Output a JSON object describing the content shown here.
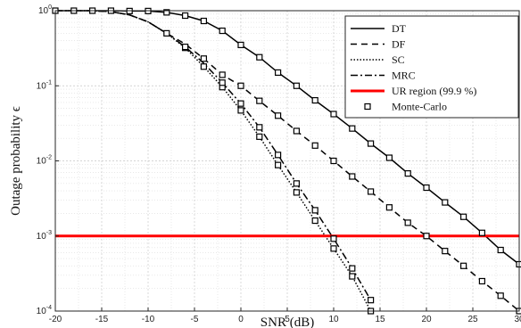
{
  "chart_data": {
    "type": "line",
    "xlabel": "SNR (dB)",
    "ylabel": "Outage probability ϵ",
    "xlim": [
      -20,
      30
    ],
    "ylim": [
      0.0001,
      1
    ],
    "yscale": "log",
    "grid": true,
    "legend_position": "top-right",
    "x_ticks": [
      "-20",
      "-15",
      "-10",
      "-5",
      "0",
      "5",
      "10",
      "15",
      "20",
      "25",
      "30"
    ],
    "y_ticks": [
      {
        "base": "10",
        "exp": "0"
      },
      {
        "base": "10",
        "exp": "-1"
      },
      {
        "base": "10",
        "exp": "-2"
      },
      {
        "base": "10",
        "exp": "-3"
      },
      {
        "base": "10",
        "exp": "-4"
      }
    ],
    "series": [
      {
        "name": "DT",
        "style": "solid",
        "color": "#000000",
        "x": [
          -20,
          -18,
          -16,
          -14,
          -12,
          -10,
          -8,
          -6,
          -4,
          -2,
          0,
          2,
          4,
          6,
          8,
          10,
          12,
          14,
          16,
          18,
          20,
          22,
          24,
          26,
          28,
          30
        ],
        "y": [
          1.0,
          1.0,
          1.0,
          1.0,
          0.99,
          0.99,
          0.95,
          0.86,
          0.73,
          0.54,
          0.35,
          0.24,
          0.15,
          0.1,
          0.064,
          0.042,
          0.027,
          0.017,
          0.011,
          0.0068,
          0.0044,
          0.0028,
          0.0018,
          0.0011,
          0.00065,
          0.00042
        ]
      },
      {
        "name": "DF",
        "style": "dashed",
        "color": "#000000",
        "x": [
          -20,
          -18,
          -16,
          -14,
          -12,
          -10,
          -8,
          -6,
          -4,
          -2,
          0,
          2,
          4,
          6,
          8,
          10,
          12,
          14,
          16,
          18,
          20,
          22,
          24,
          26,
          28,
          30
        ],
        "y": [
          1.0,
          1.0,
          1.0,
          0.97,
          0.88,
          0.71,
          0.5,
          0.36,
          0.23,
          0.14,
          0.1,
          0.063,
          0.04,
          0.025,
          0.016,
          0.01,
          0.0062,
          0.0039,
          0.0024,
          0.0015,
          0.001,
          0.00063,
          0.0004,
          0.00025,
          0.00016,
          0.0001
        ]
      },
      {
        "name": "SC",
        "style": "dotted",
        "color": "#000000",
        "x": [
          -20,
          -18,
          -16,
          -14,
          -12,
          -10,
          -8,
          -6,
          -4,
          -2,
          0,
          2,
          4,
          6,
          8,
          10,
          12,
          14
        ],
        "y": [
          1.0,
          1.0,
          1.0,
          0.97,
          0.88,
          0.71,
          0.5,
          0.32,
          0.18,
          0.096,
          0.047,
          0.021,
          0.0088,
          0.0038,
          0.0016,
          0.00068,
          0.00029,
          0.0001
        ]
      },
      {
        "name": "MRC",
        "style": "dashdot",
        "color": "#000000",
        "x": [
          -20,
          -18,
          -16,
          -14,
          -12,
          -10,
          -8,
          -6,
          -4,
          -2,
          0,
          2,
          4,
          6,
          8,
          10,
          12,
          14
        ],
        "y": [
          1.0,
          1.0,
          1.0,
          0.97,
          0.88,
          0.71,
          0.5,
          0.33,
          0.2,
          0.11,
          0.058,
          0.028,
          0.012,
          0.005,
          0.0022,
          0.00092,
          0.00037,
          0.00014
        ]
      },
      {
        "name": "UR region (99.9 %)",
        "style": "solid",
        "color": "#ff0000",
        "x": [
          -20,
          30
        ],
        "y": [
          0.001,
          0.001
        ]
      }
    ],
    "markers": {
      "name": "Monte-Carlo",
      "symbol": "square",
      "points": [
        {
          "x": -20,
          "y": 1.0
        },
        {
          "x": -18,
          "y": 1.0
        },
        {
          "x": -16,
          "y": 1.0
        },
        {
          "x": -14,
          "y": 1.0
        },
        {
          "x": -12,
          "y": 0.99
        },
        {
          "x": -10,
          "y": 0.99
        },
        {
          "x": -8,
          "y": 0.95
        },
        {
          "x": -6,
          "y": 0.86
        },
        {
          "x": -4,
          "y": 0.73
        },
        {
          "x": -2,
          "y": 0.54
        },
        {
          "x": 0,
          "y": 0.35
        },
        {
          "x": 2,
          "y": 0.24
        },
        {
          "x": 4,
          "y": 0.15
        },
        {
          "x": 6,
          "y": 0.1
        },
        {
          "x": 8,
          "y": 0.064
        },
        {
          "x": 10,
          "y": 0.042
        },
        {
          "x": 12,
          "y": 0.027
        },
        {
          "x": 14,
          "y": 0.017
        },
        {
          "x": 16,
          "y": 0.011
        },
        {
          "x": 18,
          "y": 0.0068
        },
        {
          "x": 20,
          "y": 0.0044
        },
        {
          "x": 22,
          "y": 0.0028
        },
        {
          "x": 24,
          "y": 0.0018
        },
        {
          "x": 26,
          "y": 0.0011
        },
        {
          "x": 28,
          "y": 0.00065
        },
        {
          "x": 30,
          "y": 0.00042
        },
        {
          "x": -4,
          "y": 0.23
        },
        {
          "x": -2,
          "y": 0.14
        },
        {
          "x": 0,
          "y": 0.1
        },
        {
          "x": 2,
          "y": 0.063
        },
        {
          "x": 4,
          "y": 0.04
        },
        {
          "x": 6,
          "y": 0.025
        },
        {
          "x": 8,
          "y": 0.016
        },
        {
          "x": 10,
          "y": 0.01
        },
        {
          "x": 12,
          "y": 0.0062
        },
        {
          "x": 14,
          "y": 0.0039
        },
        {
          "x": 16,
          "y": 0.0024
        },
        {
          "x": 18,
          "y": 0.0015
        },
        {
          "x": 20,
          "y": 0.001
        },
        {
          "x": 22,
          "y": 0.00063
        },
        {
          "x": 24,
          "y": 0.0004
        },
        {
          "x": 26,
          "y": 0.00025
        },
        {
          "x": 28,
          "y": 0.00016
        },
        {
          "x": 30,
          "y": 0.0001
        },
        {
          "x": -8,
          "y": 0.5
        },
        {
          "x": -6,
          "y": 0.32
        },
        {
          "x": -4,
          "y": 0.18
        },
        {
          "x": -2,
          "y": 0.096
        },
        {
          "x": 0,
          "y": 0.047
        },
        {
          "x": 2,
          "y": 0.021
        },
        {
          "x": 4,
          "y": 0.0088
        },
        {
          "x": 6,
          "y": 0.0038
        },
        {
          "x": 8,
          "y": 0.0016
        },
        {
          "x": 10,
          "y": 0.00068
        },
        {
          "x": 12,
          "y": 0.00029
        },
        {
          "x": 14,
          "y": 0.0001
        },
        {
          "x": -6,
          "y": 0.33
        },
        {
          "x": -2,
          "y": 0.11
        },
        {
          "x": 0,
          "y": 0.058
        },
        {
          "x": 2,
          "y": 0.028
        },
        {
          "x": 4,
          "y": 0.012
        },
        {
          "x": 6,
          "y": 0.005
        },
        {
          "x": 8,
          "y": 0.0022
        },
        {
          "x": 10,
          "y": 0.00092
        },
        {
          "x": 12,
          "y": 0.00037
        },
        {
          "x": 14,
          "y": 0.00014
        }
      ]
    }
  }
}
